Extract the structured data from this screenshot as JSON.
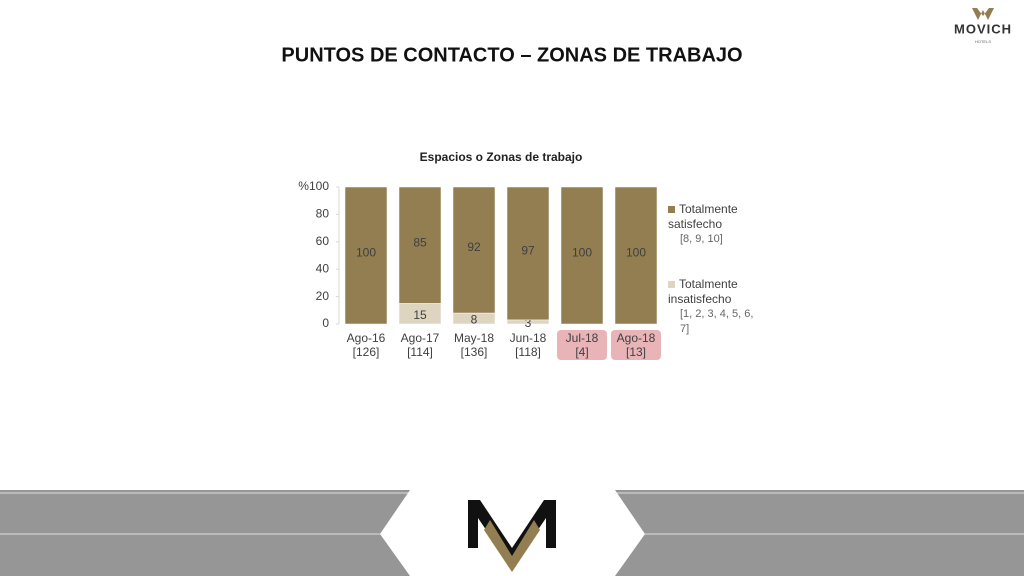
{
  "logo": {
    "name": "MOVICH",
    "tagline": "HOTELS"
  },
  "chart_data": {
    "type": "stacked_bar",
    "heading": "PUNTOS DE CONTACTO – ZONAS DE TRABAJO",
    "title": "Espacios o Zonas de trabajo",
    "categories": [
      "Ago-16",
      "Ago-17",
      "May-18",
      "Jun-18",
      "Jul-18",
      "Ago-18"
    ],
    "sample_sizes": [
      "[126]",
      "[114]",
      "[136]",
      "[118]",
      "[4]",
      "[13]"
    ],
    "highlight": [
      false,
      false,
      false,
      false,
      true,
      true
    ],
    "highlight_color": "#e8b4b8",
    "series": [
      {
        "name": "Totalmente insatisfecho",
        "scale": "[1, 2, 3, 4, 5, 6, 7]",
        "color": "#ddd5c0",
        "values": [
          0,
          15,
          8,
          3,
          0,
          0
        ]
      },
      {
        "name": "Totalmente satisfecho",
        "scale": "[8, 9, 10]",
        "color": "#937e52",
        "values": [
          100,
          85,
          92,
          97,
          100,
          100
        ]
      }
    ],
    "ylim": [
      0,
      100
    ],
    "yticks": [
      0,
      20,
      40,
      60,
      80,
      {
        "value": 100,
        "label": "%100"
      }
    ],
    "legend": "right"
  }
}
